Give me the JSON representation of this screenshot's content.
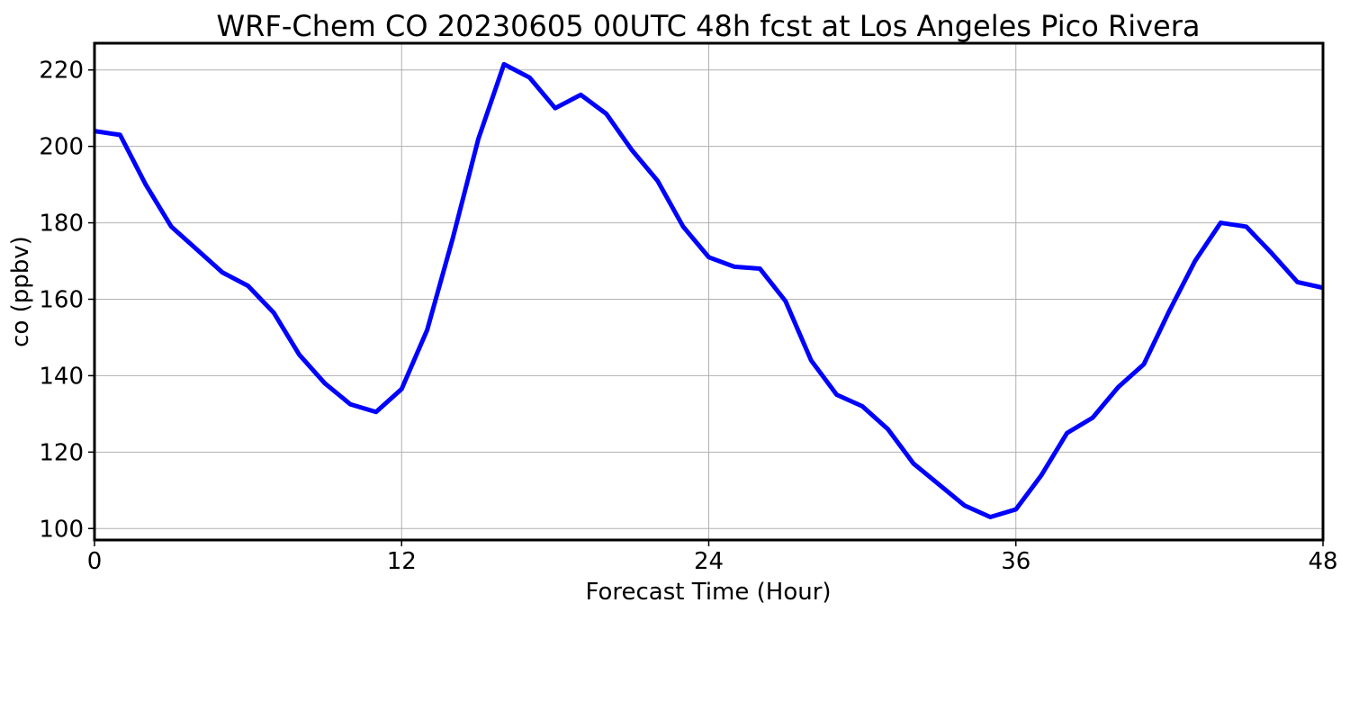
{
  "chart_data": {
    "type": "line",
    "title": "WRF-Chem CO  20230605 00UTC 48h fcst at Los Angeles Pico Rivera",
    "xlabel": "Forecast Time (Hour)",
    "ylabel": "co  (ppbv)",
    "xlim": [
      0,
      48
    ],
    "ylim": [
      97,
      227
    ],
    "xticks": [
      0,
      12,
      24,
      36,
      48
    ],
    "yticks": [
      100,
      120,
      140,
      160,
      180,
      200,
      220
    ],
    "grid": true,
    "line_color": "#0000ff",
    "series": [
      {
        "x": [
          0,
          1,
          2,
          3,
          4,
          5,
          6,
          7,
          8,
          9,
          10,
          11,
          12,
          13,
          14,
          15,
          16,
          17,
          18,
          19,
          20,
          21,
          22,
          23,
          24,
          25,
          26,
          27,
          28,
          29,
          30,
          31,
          32,
          33,
          34,
          35,
          36,
          37,
          38,
          39,
          40,
          41,
          42,
          43,
          44,
          45,
          46,
          47,
          48
        ],
        "values": [
          204,
          203,
          190,
          179,
          173,
          167,
          163.5,
          156.5,
          145.5,
          138,
          132.5,
          130.5,
          136.5,
          152,
          176,
          202,
          221.5,
          218,
          210,
          213.5,
          208.5,
          199,
          191,
          179,
          171,
          168.5,
          168,
          159.5,
          144,
          135,
          132,
          126,
          117,
          111.5,
          106,
          103,
          105,
          114,
          125,
          129,
          137,
          143,
          157,
          170,
          180,
          179,
          172,
          164.5,
          163
        ]
      }
    ]
  }
}
